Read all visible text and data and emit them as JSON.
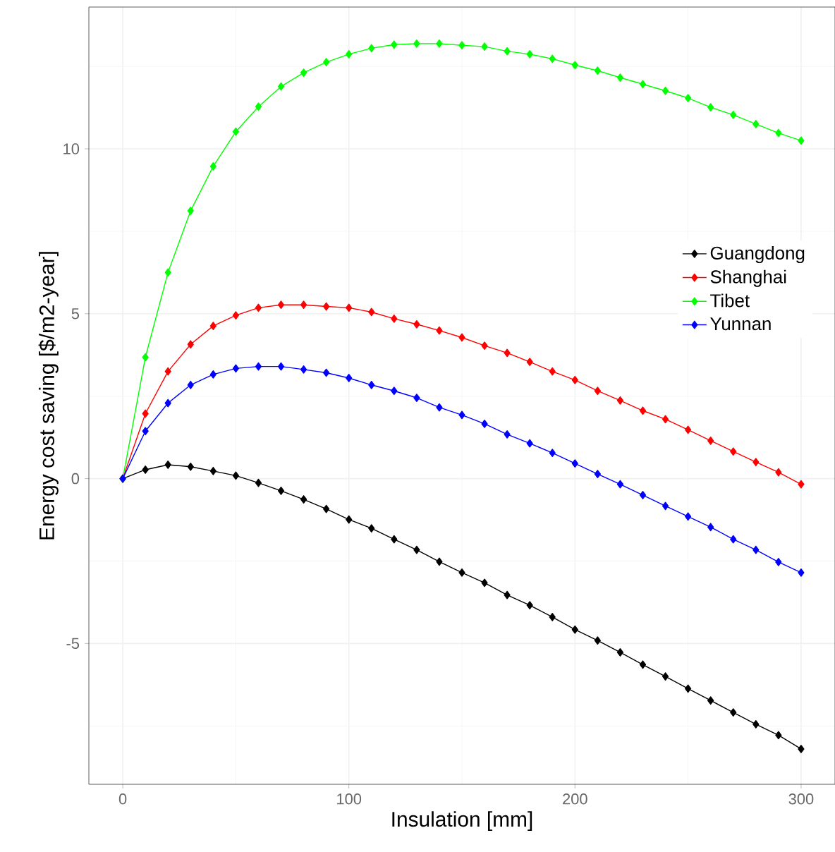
{
  "chart_data": {
    "type": "line",
    "xlabel": "Insulation [mm]",
    "ylabel": "Energy cost saving [$/m2-year]",
    "x": [
      0,
      10,
      20,
      30,
      40,
      50,
      60,
      70,
      80,
      90,
      100,
      110,
      120,
      130,
      140,
      150,
      160,
      170,
      180,
      190,
      200,
      210,
      220,
      230,
      240,
      250,
      260,
      270,
      280,
      290,
      300
    ],
    "series": [
      {
        "name": "Guangdong",
        "color": "#000000",
        "values": [
          0,
          0.27,
          0.42,
          0.36,
          0.23,
          0.09,
          -0.13,
          -0.37,
          -0.63,
          -0.92,
          -1.24,
          -1.51,
          -1.84,
          -2.16,
          -2.52,
          -2.85,
          -3.16,
          -3.53,
          -3.84,
          -4.2,
          -4.58,
          -4.91,
          -5.27,
          -5.64,
          -6.0,
          -6.37,
          -6.73,
          -7.09,
          -7.45,
          -7.78,
          -8.2
        ]
      },
      {
        "name": "Shanghai",
        "color": "#ff0000",
        "values": [
          0,
          1.97,
          3.25,
          4.07,
          4.63,
          4.95,
          5.18,
          5.27,
          5.27,
          5.22,
          5.18,
          5.05,
          4.85,
          4.68,
          4.49,
          4.28,
          4.03,
          3.81,
          3.54,
          3.25,
          2.99,
          2.66,
          2.37,
          2.06,
          1.8,
          1.48,
          1.15,
          0.82,
          0.5,
          0.19,
          -0.17
        ]
      },
      {
        "name": "Tibet",
        "color": "#00ff00",
        "values": [
          0,
          3.68,
          6.25,
          8.12,
          9.47,
          10.52,
          11.28,
          11.89,
          12.31,
          12.63,
          12.87,
          13.05,
          13.16,
          13.19,
          13.19,
          13.14,
          13.1,
          12.96,
          12.87,
          12.73,
          12.54,
          12.37,
          12.16,
          11.96,
          11.76,
          11.54,
          11.26,
          11.03,
          10.75,
          10.48,
          10.25
        ]
      },
      {
        "name": "Yunnan",
        "color": "#0000ff",
        "values": [
          0,
          1.44,
          2.29,
          2.84,
          3.16,
          3.34,
          3.4,
          3.4,
          3.31,
          3.21,
          3.05,
          2.84,
          2.66,
          2.45,
          2.16,
          1.93,
          1.66,
          1.34,
          1.07,
          0.78,
          0.46,
          0.14,
          -0.17,
          -0.5,
          -0.83,
          -1.15,
          -1.47,
          -1.84,
          -2.16,
          -2.53,
          -2.85
        ]
      }
    ],
    "xlim": [
      -15,
      315
    ],
    "ylim": [
      -9.27,
      14.3
    ],
    "xticks": [
      0,
      100,
      200,
      300
    ],
    "yticks": [
      -5,
      0,
      5,
      10
    ],
    "grid": true,
    "legend": "right",
    "marker": "diamond",
    "line_style": "solid"
  }
}
